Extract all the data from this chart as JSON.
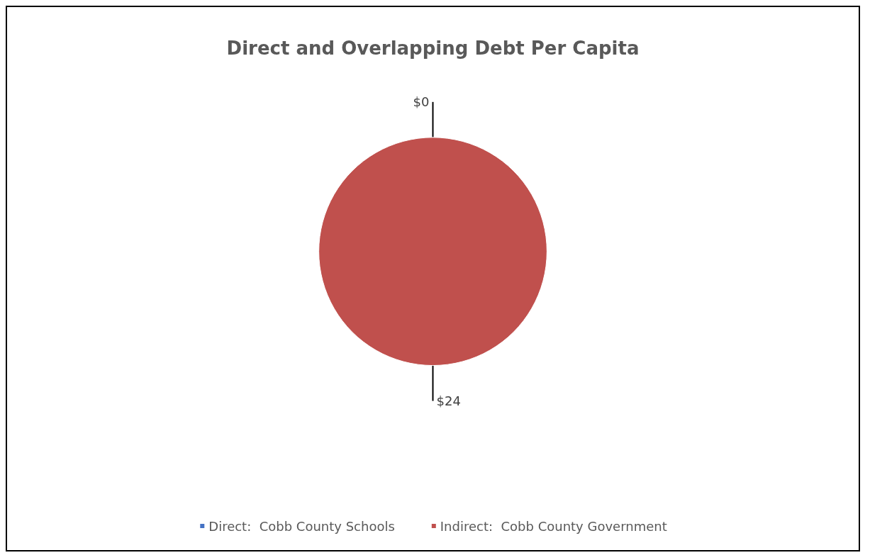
{
  "chart_data": {
    "type": "pie",
    "title": "Direct and Overlapping Debt Per Capita",
    "categories": [
      "Direct:  Cobb County Schools",
      "Indirect:  Cobb County Government"
    ],
    "values": [
      0,
      24
    ],
    "colors": [
      "#4472c4",
      "#c0504d"
    ],
    "value_labels": [
      "$0",
      "$24"
    ],
    "legend": "bottom"
  }
}
